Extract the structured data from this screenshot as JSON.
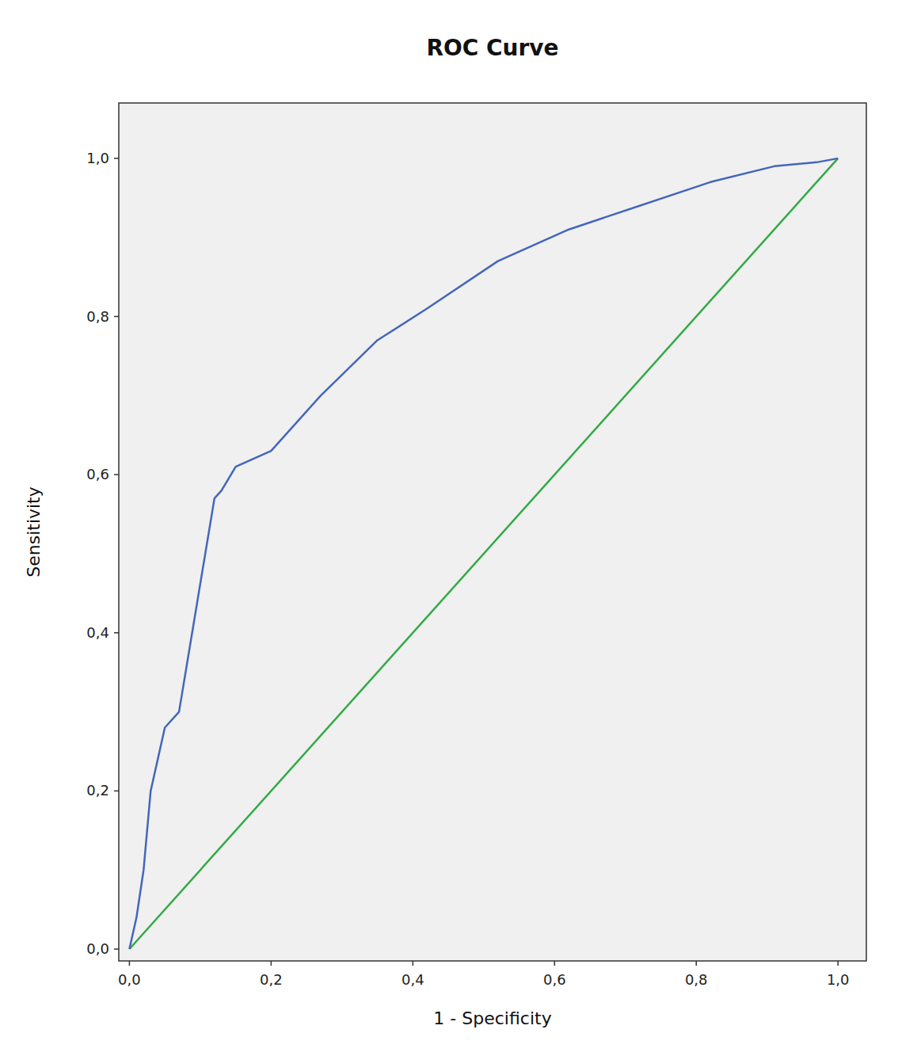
{
  "chart_data": {
    "type": "line",
    "title": "ROC Curve",
    "x_label": "1 - Specificity",
    "y_label": "Sensitivity",
    "series": [
      {
        "color": "#33aa44",
        "x": [
          0.0,
          1.0
        ],
        "values": [
          0.0,
          1.0
        ]
      },
      {
        "color": "#4466bb",
        "x": [
          0.0,
          0.01,
          0.02,
          0.03,
          0.05,
          0.07,
          0.12,
          0.13,
          0.15,
          0.2,
          0.27,
          0.35,
          0.42,
          0.52,
          0.62,
          0.72,
          0.82,
          0.91,
          0.97,
          1.0
        ],
        "values": [
          0.0,
          0.04,
          0.1,
          0.2,
          0.28,
          0.3,
          0.57,
          0.58,
          0.61,
          0.63,
          0.7,
          0.77,
          0.81,
          0.87,
          0.91,
          0.94,
          0.97,
          0.99,
          0.995,
          1.0
        ]
      }
    ],
    "xlim": [
      -0.015,
      1.04
    ],
    "ylim": [
      -0.015,
      1.07
    ],
    "xticks": [
      {
        "value": 0.0,
        "label": "0,0"
      },
      {
        "value": 0.2,
        "label": "0,2"
      },
      {
        "value": 0.4,
        "label": "0,4"
      },
      {
        "value": 0.6,
        "label": "0,6"
      },
      {
        "value": 0.8,
        "label": "0,8"
      },
      {
        "value": 1.0,
        "label": "1,0"
      }
    ],
    "yticks": [
      {
        "value": 0.0,
        "label": "0,0"
      },
      {
        "value": 0.2,
        "label": "0,2"
      },
      {
        "value": 0.4,
        "label": "0,4"
      },
      {
        "value": 0.6,
        "label": "0,6"
      },
      {
        "value": 0.8,
        "label": "0,8"
      },
      {
        "value": 1.0,
        "label": "1,0"
      }
    ],
    "grid": false
  }
}
